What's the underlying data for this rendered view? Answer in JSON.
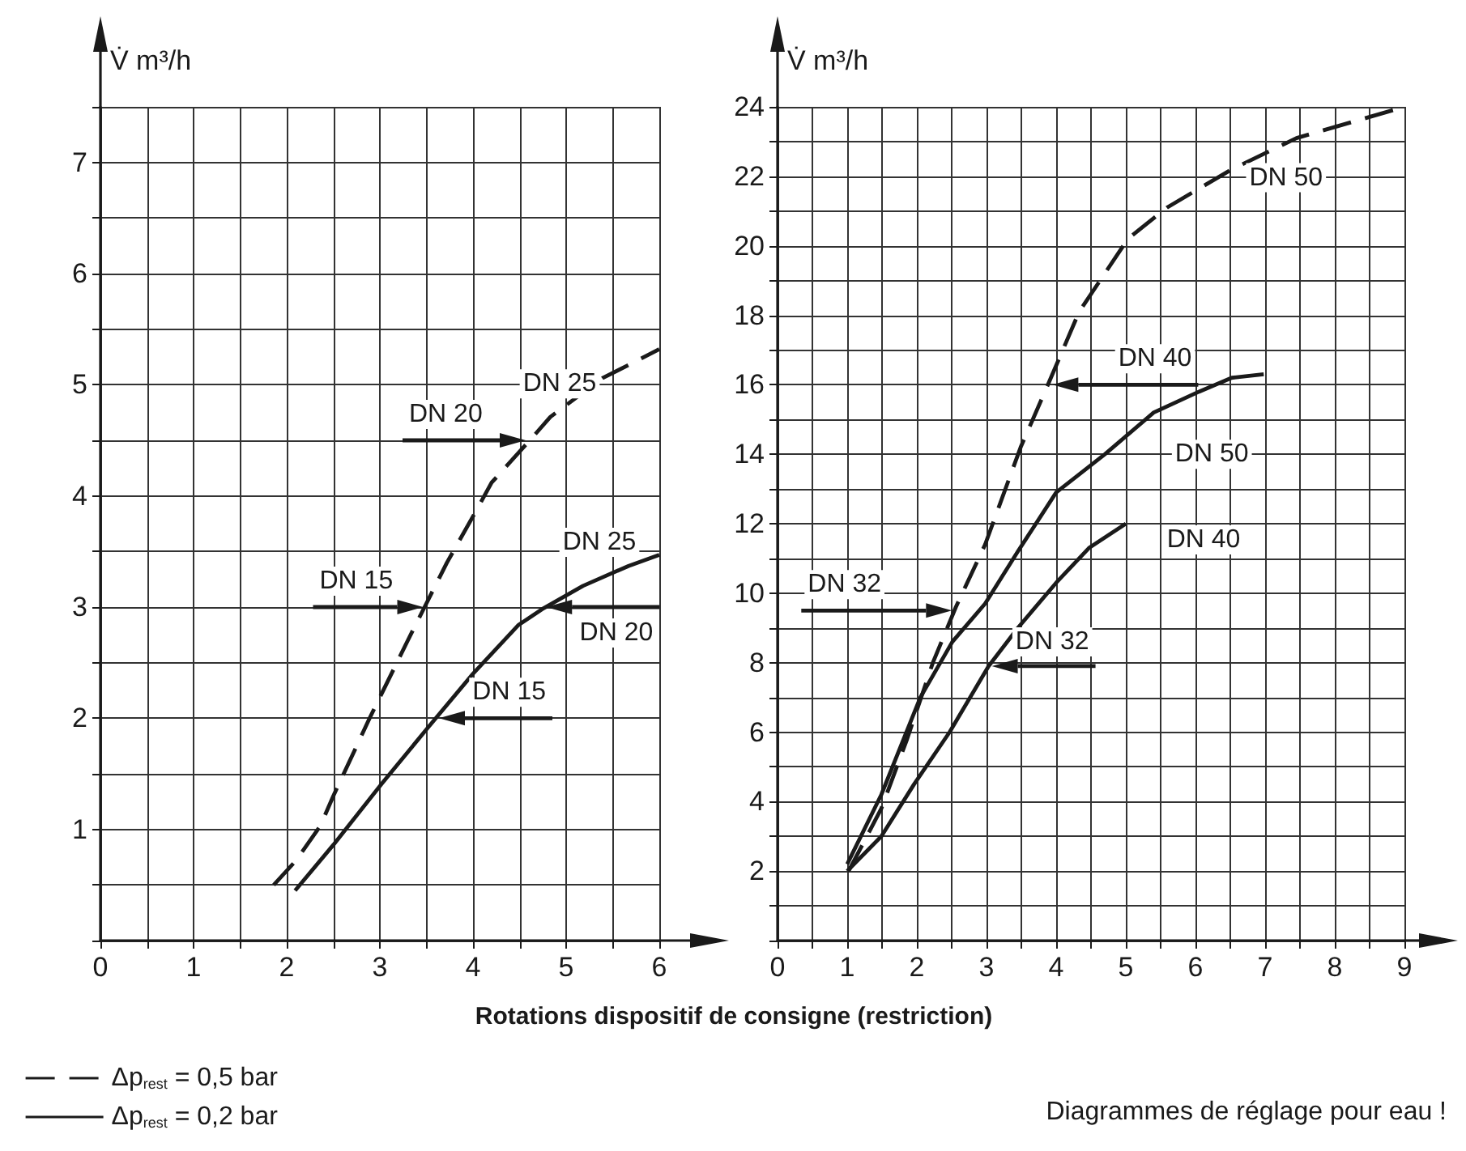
{
  "chart_data": [
    {
      "type": "line",
      "ylabel": "V̇ m³/h",
      "xlim": [
        0,
        6
      ],
      "ylim": [
        0,
        7.5
      ],
      "xticks": [
        0,
        {
          "value": 0.5,
          "label": null
        },
        1,
        {
          "value": 1.5,
          "label": null
        },
        2,
        {
          "value": 2.5,
          "label": null
        },
        3,
        {
          "value": 3.5,
          "label": null
        },
        4,
        {
          "value": 4.5,
          "label": null
        },
        5,
        {
          "value": 5.5,
          "label": null
        },
        6
      ],
      "yticks": [
        {
          "value": 0.5,
          "label": null
        },
        1,
        {
          "value": 1.5,
          "label": null
        },
        2,
        {
          "value": 2.5,
          "label": null
        },
        3,
        {
          "value": 3.5,
          "label": null
        },
        4,
        {
          "value": 4.5,
          "label": null
        },
        5,
        {
          "value": 5.5,
          "label": null
        },
        6,
        {
          "value": 6.5,
          "label": null
        },
        7,
        {
          "value": 7.5,
          "label": null
        }
      ],
      "grid": true,
      "legend": "bottom left",
      "marker": "none",
      "series": [
        {
          "name": "Δp$_{rest}$ = 0,5 bar",
          "color": "#1a1a1a",
          "line_style": "dashed",
          "x": [
            1.86,
            2.1,
            2.36,
            2.5,
            2.89,
            3.3,
            3.48,
            3.72,
            4.03,
            4.2,
            4.61,
            4.83,
            5.39,
            5.7,
            6
          ],
          "values": [
            0.5,
            0.72,
            1.03,
            1.3,
            2.0,
            2.7,
            3.0,
            3.4,
            3.86,
            4.12,
            4.5,
            4.71,
            5.06,
            5.19,
            5.32
          ]
        },
        {
          "name": "Δp$_{rest}$ = 0,2 bar",
          "color": "#1a1a1a",
          "line_style": "solid",
          "x": [
            2.09,
            2.5,
            3.02,
            3.51,
            4.0,
            4.49,
            4.76,
            5.18,
            5.67,
            6
          ],
          "values": [
            0.45,
            0.86,
            1.41,
            1.91,
            2.4,
            2.84,
            2.99,
            3.19,
            3.37,
            3.47
          ]
        }
      ],
      "annotations": [
        {
          "text": "DN 25",
          "x": 5.0,
          "y": 4.92
        },
        {
          "text": "DN 20",
          "x": 4.6,
          "y": 4.5
        },
        {
          "text": "DN 15",
          "x": 3.5,
          "y": 3.0
        },
        {
          "text": "DN 25",
          "x": 5.6,
          "y": 3.35
        },
        {
          "text": "DN 20",
          "x": 4.75,
          "y": 3.0
        },
        {
          "text": "DN 15",
          "x": 3.6,
          "y": 2.0
        }
      ]
    },
    {
      "type": "line",
      "ylabel": "V̇ m³/h",
      "xlabel": "Rotations dispositif de consigne (restriction)",
      "xlim": [
        0,
        9
      ],
      "ylim": [
        0,
        24
      ],
      "xticks": [
        0,
        {
          "value": 0.5,
          "label": null
        },
        1,
        {
          "value": 1.5,
          "label": null
        },
        2,
        {
          "value": 2.5,
          "label": null
        },
        3,
        {
          "value": 3.5,
          "label": null
        },
        4,
        {
          "value": 4.5,
          "label": null
        },
        5,
        {
          "value": 5.5,
          "label": null
        },
        6,
        {
          "value": 6.5,
          "label": null
        },
        7,
        {
          "value": 7.5,
          "label": null
        },
        8,
        {
          "value": 8.5,
          "label": null
        },
        9
      ],
      "yticks": [
        {
          "value": 1,
          "label": null
        },
        2,
        {
          "value": 3,
          "label": null
        },
        4,
        {
          "value": 5,
          "label": null
        },
        6,
        {
          "value": 7,
          "label": null
        },
        8,
        {
          "value": 9,
          "label": null
        },
        10,
        {
          "value": 11,
          "label": null
        },
        12,
        {
          "value": 13,
          "label": null
        },
        14,
        {
          "value": 15,
          "label": null
        },
        16,
        {
          "value": 17,
          "label": null
        },
        18,
        {
          "value": 19,
          "label": null
        },
        20,
        {
          "value": 21,
          "label": null
        },
        22,
        {
          "value": 23,
          "label": null
        },
        24
      ],
      "grid": true,
      "marker": "none",
      "series": [
        {
          "color": "#1a1a1a",
          "line_style": "dashed",
          "x": [
            1.02,
            1.49,
            1.86,
            2.23,
            2.56,
            2.98,
            3.49,
            3.86,
            4.33,
            5.03,
            5.59,
            6.52,
            7.45,
            9
          ],
          "values": [
            2.0,
            3.8,
            5.8,
            8.0,
            9.6,
            11.4,
            14.2,
            15.9,
            18.1,
            20.2,
            21.1,
            22.2,
            23.1,
            24
          ]
        },
        {
          "color": "#1a1a1a",
          "line_style": "solid",
          "x": [
            1.0,
            1.49,
            2.05,
            2.51,
            2.98,
            3.45,
            4.0,
            4.7,
            5.4,
            6.05,
            6.52,
            6.98
          ],
          "values": [
            2.2,
            4.2,
            7.0,
            8.6,
            9.7,
            11.2,
            12.9,
            14.0,
            15.2,
            15.8,
            16.2,
            16.3
          ]
        },
        {
          "color": "#1a1a1a",
          "line_style": "solid",
          "x": [
            1.0,
            1.49,
            1.96,
            2.47,
            3.03,
            3.45,
            4.0,
            4.47,
            5.0
          ],
          "values": [
            2.0,
            3.0,
            4.5,
            6.0,
            7.9,
            9.0,
            10.3,
            11.3,
            12.0
          ]
        }
      ],
      "annotations": [
        {
          "text": "DN 50",
          "x": 7.3,
          "y": 22.8
        },
        {
          "text": "DN 40",
          "x": 3.9,
          "y": 16
        },
        {
          "text": "DN 32",
          "x": 2.55,
          "y": 9.5
        },
        {
          "text": "DN 50",
          "x": 4.7,
          "y": 14
        },
        {
          "text": "DN 40",
          "x": 5.0,
          "y": 12
        },
        {
          "text": "DN 32",
          "x": 3.03,
          "y": 7.9
        },
        "Diagrammes de réglage pour eau !"
      ]
    }
  ]
}
